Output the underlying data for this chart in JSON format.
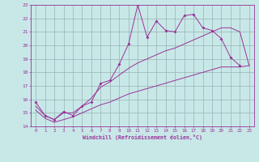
{
  "x": [
    0,
    1,
    2,
    3,
    4,
    5,
    6,
    7,
    8,
    9,
    10,
    11,
    12,
    13,
    14,
    15,
    16,
    17,
    18,
    19,
    20,
    21,
    22,
    23
  ],
  "y_main": [
    15.8,
    14.8,
    14.5,
    15.1,
    14.8,
    15.5,
    15.8,
    17.2,
    17.4,
    18.6,
    20.1,
    23.0,
    20.6,
    21.8,
    21.1,
    21.0,
    22.2,
    22.3,
    21.3,
    21.1,
    20.5,
    19.1,
    18.5,
    null
  ],
  "y_line_upper": [
    15.5,
    14.8,
    14.5,
    15.0,
    15.0,
    15.5,
    16.1,
    16.9,
    17.3,
    17.8,
    18.3,
    18.7,
    19.0,
    19.3,
    19.6,
    19.8,
    20.1,
    20.4,
    20.7,
    21.0,
    21.3,
    21.3,
    21.0,
    18.5
  ],
  "y_line_lower": [
    15.2,
    14.6,
    14.3,
    14.5,
    14.7,
    15.0,
    15.3,
    15.6,
    15.8,
    16.1,
    16.4,
    16.6,
    16.8,
    17.0,
    17.2,
    17.4,
    17.6,
    17.8,
    18.0,
    18.2,
    18.4,
    18.4,
    18.4,
    18.5
  ],
  "color": "#993399",
  "bg_color": "#c8e8e8",
  "grid_color": "#9ab0b0",
  "xlim_min": -0.5,
  "xlim_max": 23.5,
  "ylim_min": 14,
  "ylim_max": 23,
  "xlabel": "Windchill (Refroidissement éolien,°C)",
  "xticks": [
    0,
    1,
    2,
    3,
    4,
    5,
    6,
    7,
    8,
    9,
    10,
    11,
    12,
    13,
    14,
    15,
    16,
    17,
    18,
    19,
    20,
    21,
    22,
    23
  ],
  "yticks": [
    14,
    15,
    16,
    17,
    18,
    19,
    20,
    21,
    22,
    23
  ]
}
